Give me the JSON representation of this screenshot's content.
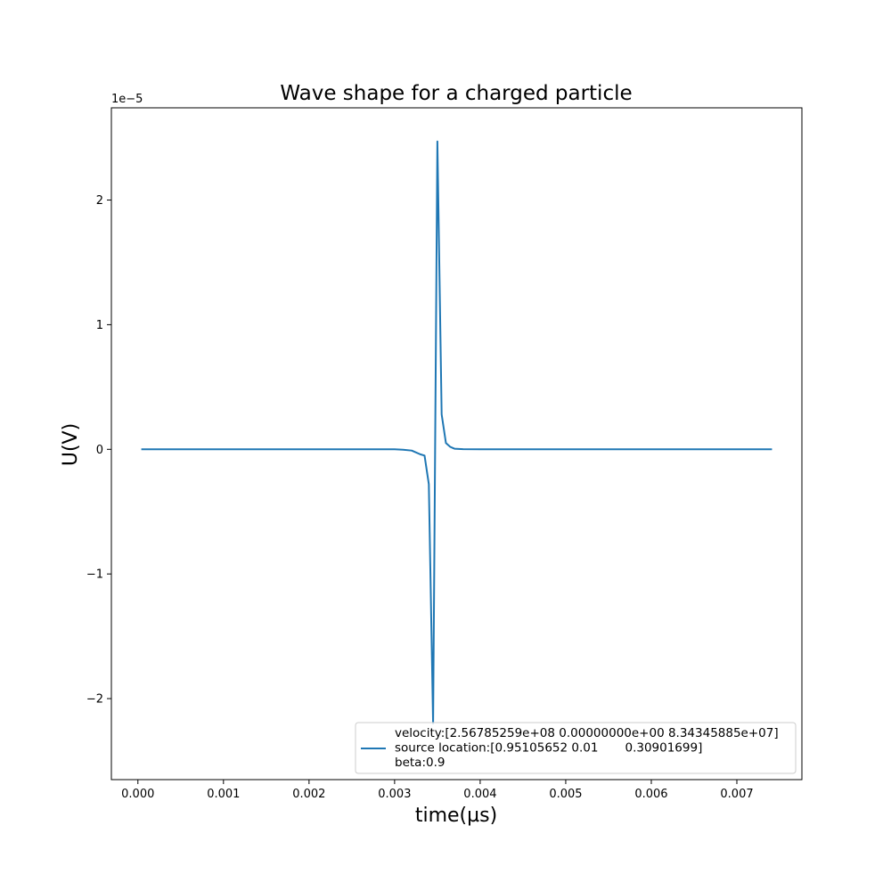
{
  "chart_data": {
    "type": "line",
    "title": "Wave shape for a charged particle",
    "xlabel": "time(µs)",
    "ylabel": "U(V)",
    "y_offset_text": "1e−5",
    "xlim": [
      -0.00031,
      0.00776
    ],
    "ylim": [
      -2.65,
      2.74
    ],
    "x_ticks": [
      0.0,
      0.001,
      0.002,
      0.003,
      0.004,
      0.005,
      0.006,
      0.007
    ],
    "x_tick_labels": [
      "0.000",
      "0.001",
      "0.002",
      "0.003",
      "0.004",
      "0.005",
      "0.006",
      "0.007"
    ],
    "y_ticks": [
      -2,
      -1,
      0,
      1,
      2
    ],
    "y_tick_labels": [
      "−2",
      "−1",
      "0",
      "1",
      "2"
    ],
    "grid": false,
    "legend_position": "lower-right",
    "series": [
      {
        "legend_lines": [
          "velocity:[2.56785259e+08 0.00000000e+00 8.34345885e+07]",
          "source location:[0.95105652 0.01       0.30901699]",
          "beta:0.9"
        ],
        "color": "#1f77b4",
        "x": [
          5e-05,
          0.0005,
          0.001,
          0.0015,
          0.002,
          0.0025,
          0.003,
          0.0031,
          0.0032,
          0.0033,
          0.00335,
          0.0034,
          0.00345,
          0.0035,
          0.00355,
          0.0036,
          0.00365,
          0.0037,
          0.0038,
          0.004,
          0.005,
          0.006,
          0.007,
          0.0074
        ],
        "y": [
          0,
          0,
          0,
          0,
          0,
          0,
          0,
          -0.003,
          -0.01,
          -0.04,
          -0.05,
          -0.28,
          -2.2,
          2.47,
          0.28,
          0.05,
          0.02,
          0.005,
          0.001,
          0,
          0,
          0,
          0,
          0
        ]
      }
    ]
  }
}
